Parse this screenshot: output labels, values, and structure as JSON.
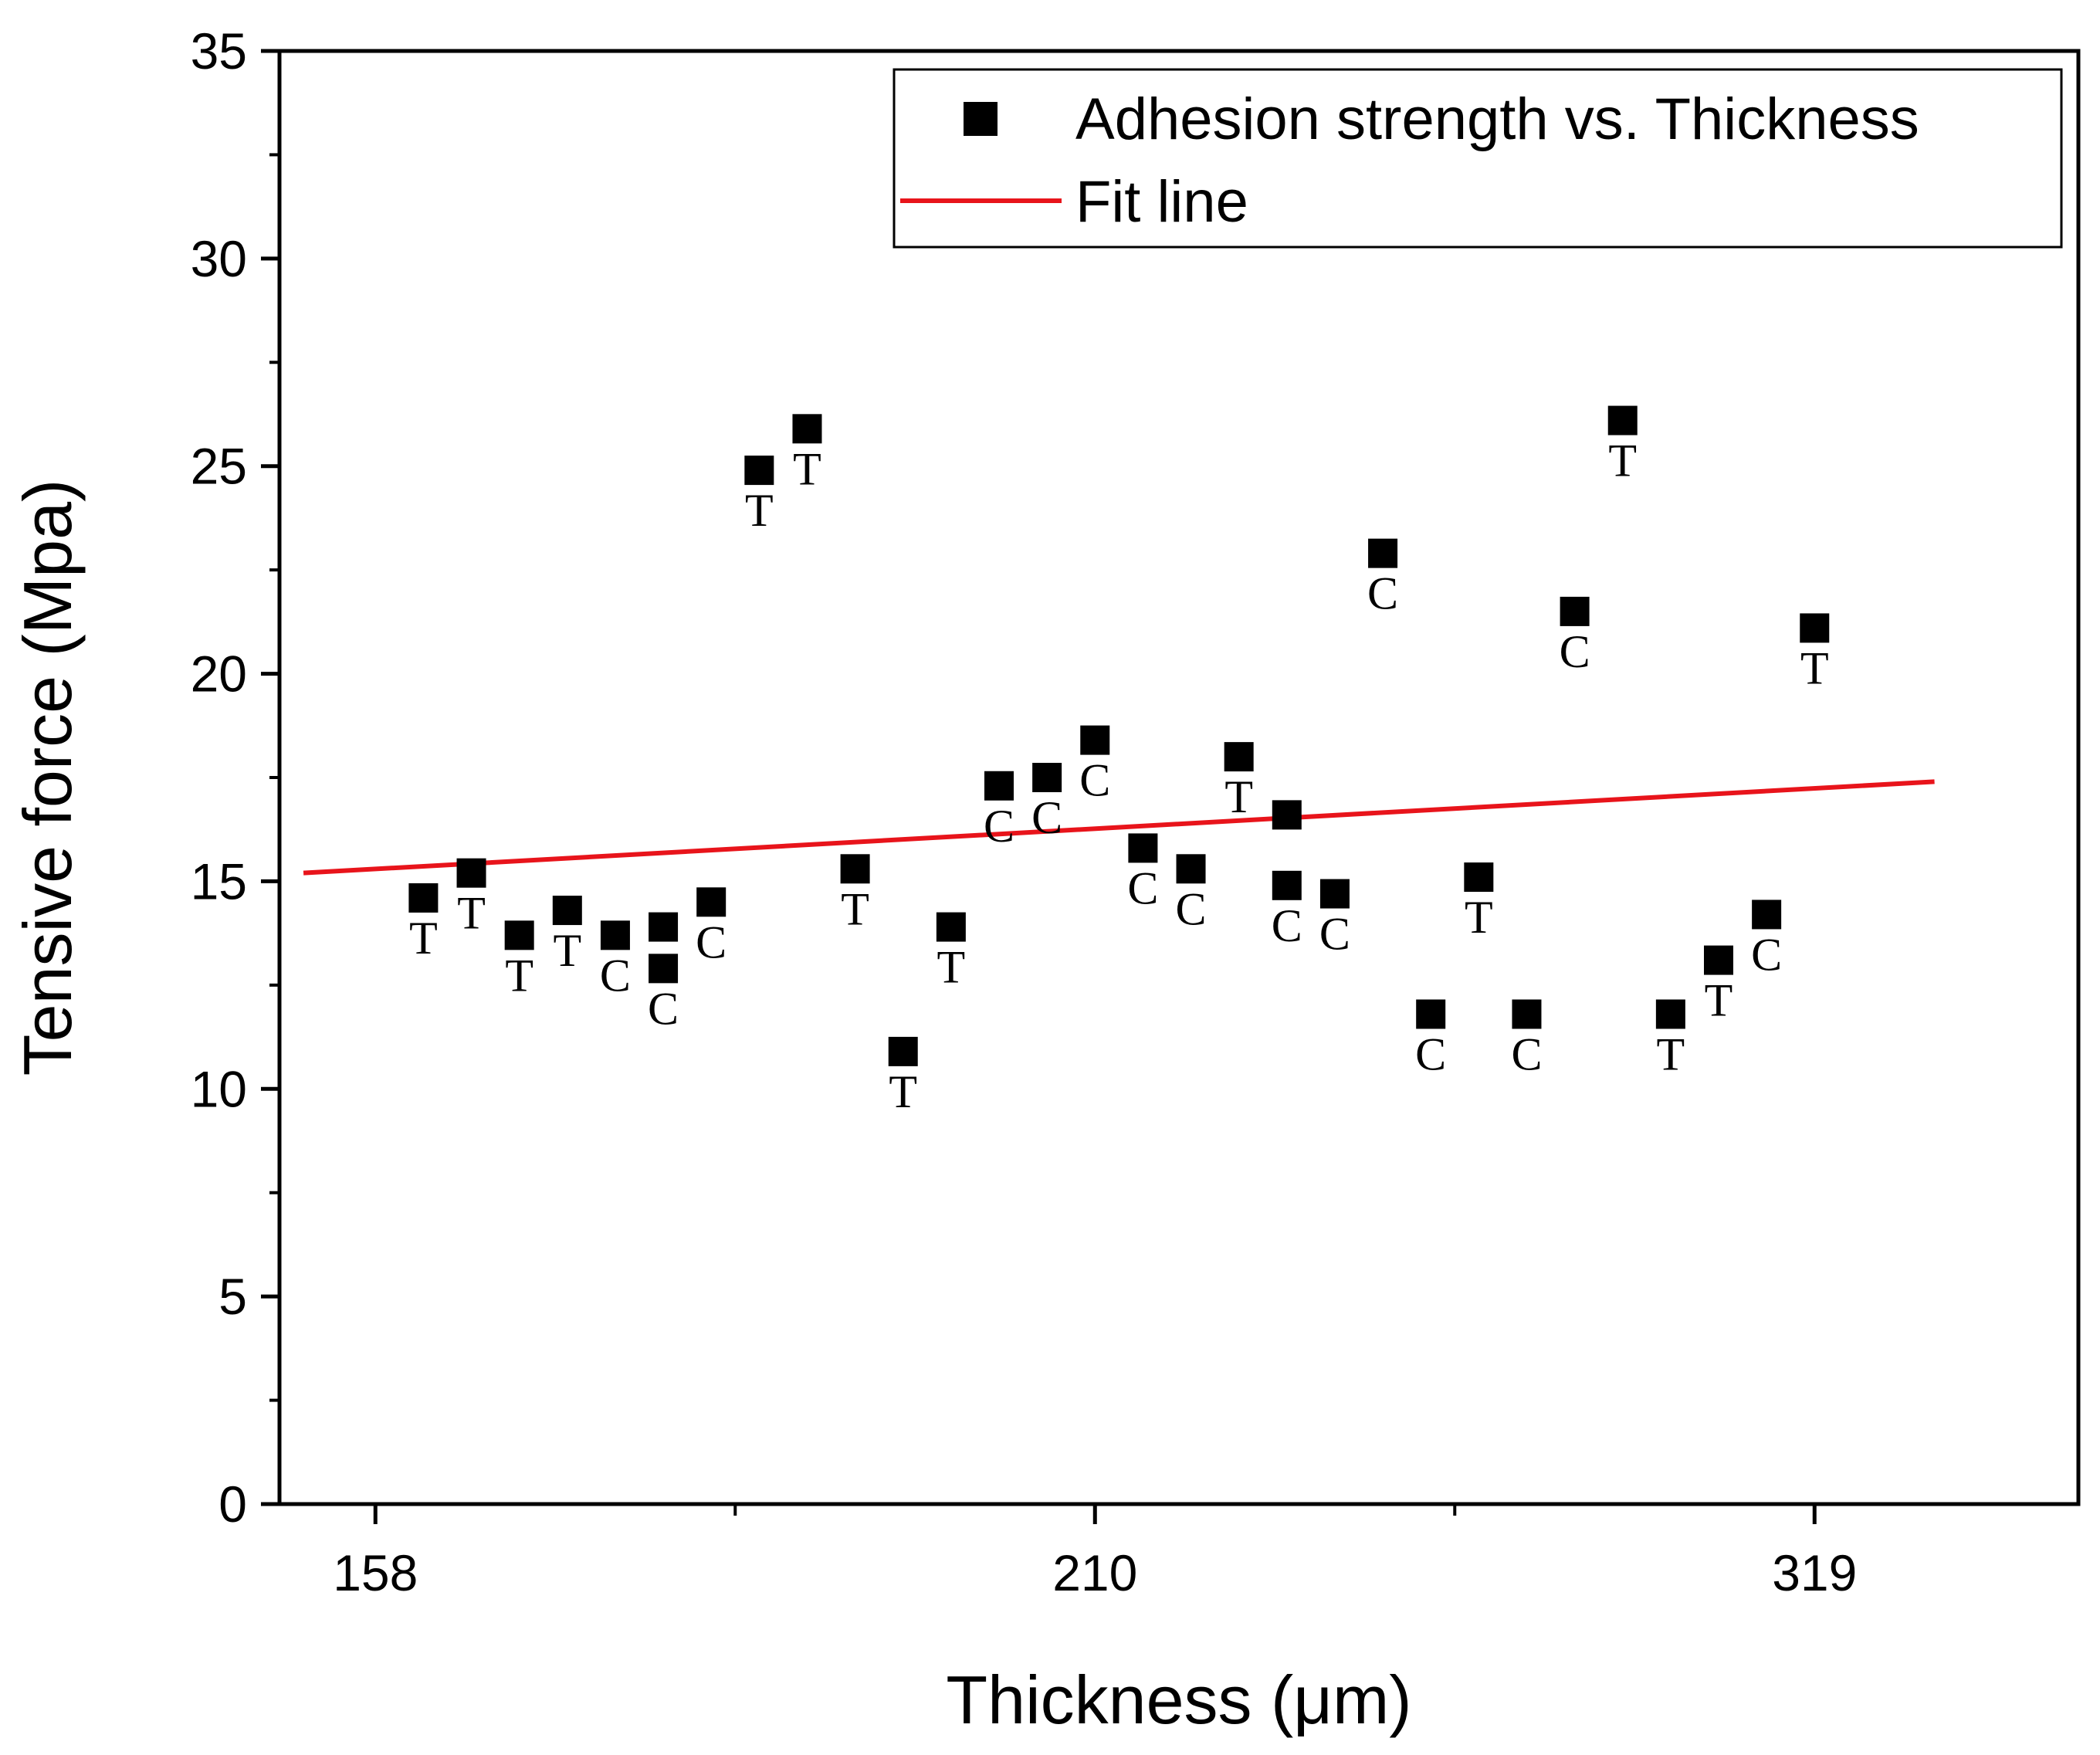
{
  "chart_data": {
    "type": "scatter",
    "title": "",
    "xlabel": "Thickness (μm)",
    "ylabel": "Tensive force (Mpa)",
    "ylim": [
      0,
      35
    ],
    "yticks": [
      0,
      5,
      10,
      15,
      20,
      25,
      30,
      35
    ],
    "xtick_labels": [
      {
        "pos": 2,
        "label": "158"
      },
      {
        "pos": 17,
        "label": "210"
      },
      {
        "pos": 32,
        "label": "319"
      }
    ],
    "x_range": [
      0,
      37.5
    ],
    "grid": false,
    "legend": {
      "placement": "top-right",
      "entries": [
        "Adhesion strength vs. Thickness",
        "Fit line"
      ]
    },
    "colors": {
      "points": "#000000",
      "fit_line": "#e8141b"
    },
    "series": [
      {
        "name": "Adhesion strength vs. Thickness",
        "points": [
          {
            "x": 3,
            "y": 14.6,
            "label": "T"
          },
          {
            "x": 4,
            "y": 15.2,
            "label": "T"
          },
          {
            "x": 5,
            "y": 13.7,
            "label": "T"
          },
          {
            "x": 6,
            "y": 14.3,
            "label": "T"
          },
          {
            "x": 7,
            "y": 13.7,
            "label": "C"
          },
          {
            "x": 8,
            "y": 13.9,
            "label": ""
          },
          {
            "x": 8,
            "y": 12.9,
            "label": "C"
          },
          {
            "x": 9,
            "y": 14.5,
            "label": "C"
          },
          {
            "x": 10,
            "y": 24.9,
            "label": "T"
          },
          {
            "x": 11,
            "y": 25.9,
            "label": "T"
          },
          {
            "x": 12,
            "y": 15.3,
            "label": "T"
          },
          {
            "x": 13,
            "y": 10.9,
            "label": "T"
          },
          {
            "x": 14,
            "y": 13.9,
            "label": "T"
          },
          {
            "x": 15,
            "y": 17.3,
            "label": "C"
          },
          {
            "x": 16,
            "y": 17.5,
            "label": "C"
          },
          {
            "x": 17,
            "y": 18.4,
            "label": "C"
          },
          {
            "x": 18,
            "y": 15.8,
            "label": "C"
          },
          {
            "x": 19,
            "y": 15.3,
            "label": "C"
          },
          {
            "x": 20,
            "y": 18.0,
            "label": "T"
          },
          {
            "x": 21,
            "y": 16.6,
            "label": ""
          },
          {
            "x": 21,
            "y": 14.9,
            "label": "C"
          },
          {
            "x": 22,
            "y": 14.7,
            "label": "C"
          },
          {
            "x": 23,
            "y": 22.9,
            "label": "C"
          },
          {
            "x": 24,
            "y": 11.8,
            "label": "C"
          },
          {
            "x": 25,
            "y": 15.1,
            "label": "T"
          },
          {
            "x": 26,
            "y": 11.8,
            "label": "C"
          },
          {
            "x": 27,
            "y": 21.5,
            "label": "C"
          },
          {
            "x": 28,
            "y": 26.1,
            "label": "T"
          },
          {
            "x": 29,
            "y": 11.8,
            "label": "T"
          },
          {
            "x": 30,
            "y": 13.1,
            "label": "T"
          },
          {
            "x": 31,
            "y": 14.2,
            "label": "C"
          },
          {
            "x": 32,
            "y": 21.1,
            "label": "T"
          }
        ]
      },
      {
        "name": "Fit line",
        "type": "line",
        "x": [
          0.5,
          34.5
        ],
        "y": [
          15.2,
          17.4
        ]
      }
    ]
  }
}
